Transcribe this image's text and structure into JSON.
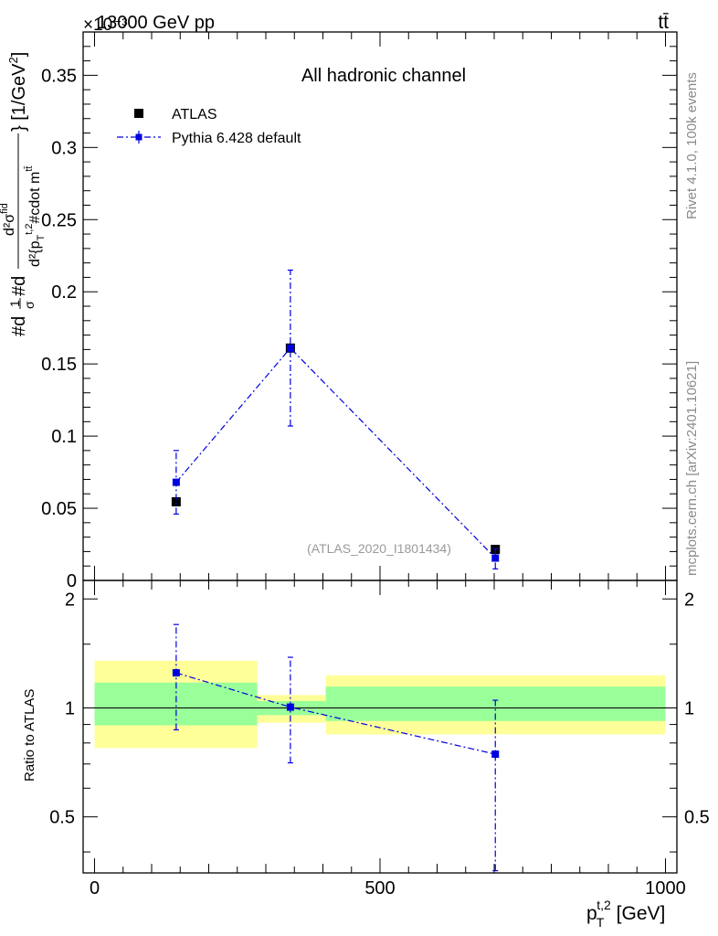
{
  "header": {
    "energy_label": "13000 GeV pp",
    "process_label": "tt̄",
    "exponent_label": "×10⁻³",
    "channel_label": "All hadronic channel",
    "analysis_label": "(ATLAS_2020_I1801434)",
    "rivet_label": "Rivet 4.1.0,  100k events",
    "source_label": "mcplots.cern.ch [arXiv:2401.10621]"
  },
  "legend": {
    "atlas_label": "ATLAS",
    "mc_label": "Pythia 6.428 default"
  },
  "chart_data": [
    {
      "type": "scatter",
      "panel": "main",
      "ylabel": "#d1/σ#d d²σ^{fid} / d²{p_T^{t,2} #cdot m^{tt̄}} [1/GeV²]",
      "ylabel_parts": {
        "prefix": "#d",
        "frac1_num": "1",
        "frac1_den": "σ",
        "mid": "#d",
        "frac2_num": "d²σ",
        "frac2_num_sup": "fid",
        "frac2_den": "d²{p",
        "frac2_den_sub": "T",
        "frac2_den_sup": "t,2",
        "frac2_den_rest": "#cdot m",
        "frac2_den_rest_sup": "tt̄",
        "close": "} [1/GeV",
        "close_sup": "2",
        "end": "]"
      },
      "xlim": [
        -20,
        1020
      ],
      "ylim": [
        0,
        0.38
      ],
      "y_scale_exponent": -3,
      "y_ticks": [
        0,
        0.05,
        0.1,
        0.15,
        0.2,
        0.25,
        0.3,
        0.35
      ],
      "y_tick_labels": [
        "0",
        "0.05",
        "0.1",
        "0.15",
        "0.2",
        "0.25",
        "0.3",
        "0.35"
      ],
      "series": [
        {
          "name": "ATLAS",
          "x": [
            143,
            343,
            702
          ],
          "y": [
            0.0545,
            0.161,
            0.0215
          ],
          "yerr": [
            0.002,
            0.002,
            0.0008
          ],
          "color": "#000000"
        },
        {
          "name": "Pythia 6.428 default",
          "x": [
            143,
            343,
            702
          ],
          "y": [
            0.068,
            0.161,
            0.0155
          ],
          "yerr_low": [
            0.022,
            0.054,
            0.0075
          ],
          "yerr_high": [
            0.022,
            0.054,
            0.0065
          ],
          "color": "#0000e0",
          "line": "dash-dot"
        }
      ]
    },
    {
      "type": "scatter",
      "panel": "ratio",
      "xlabel": "p_T^{t,2} [GeV]",
      "xlabel_parts": {
        "base": "p",
        "sub": "T",
        "sup": "t,2",
        "rest": " [GeV]"
      },
      "ylabel": "Ratio to ATLAS",
      "xlim": [
        -20,
        1020
      ],
      "ylim": [
        0.35,
        2.25
      ],
      "x_ticks": [
        0,
        500,
        1000
      ],
      "x_tick_labels": [
        "0",
        "500",
        "1000"
      ],
      "y_ticks": [
        0.5,
        1,
        2
      ],
      "y_tick_labels": [
        "0.5",
        "1",
        "2"
      ],
      "bands": [
        {
          "xlo": 0,
          "xhi": 285,
          "tot_lo": 0.775,
          "tot_hi": 1.35,
          "stat_lo": 0.895,
          "stat_hi": 1.175
        },
        {
          "xlo": 285,
          "xhi": 405,
          "tot_lo": 0.91,
          "tot_hi": 1.085,
          "stat_lo": 0.955,
          "stat_hi": 1.045
        },
        {
          "xlo": 405,
          "xhi": 1000,
          "tot_lo": 0.845,
          "tot_hi": 1.23,
          "stat_lo": 0.92,
          "stat_hi": 1.145
        }
      ],
      "band_colors": {
        "total": "#ffff99",
        "stat": "#99ff99"
      },
      "series": [
        {
          "name": "Pythia 6.428 default",
          "x": [
            143,
            343,
            702
          ],
          "y": [
            1.25,
            1.005,
            0.745
          ],
          "yerr_low": [
            0.38,
            0.3,
            0.39
          ],
          "yerr_high": [
            0.45,
            0.375,
            0.305
          ],
          "color": "#0000e0",
          "line": "dash-dot"
        }
      ]
    }
  ]
}
